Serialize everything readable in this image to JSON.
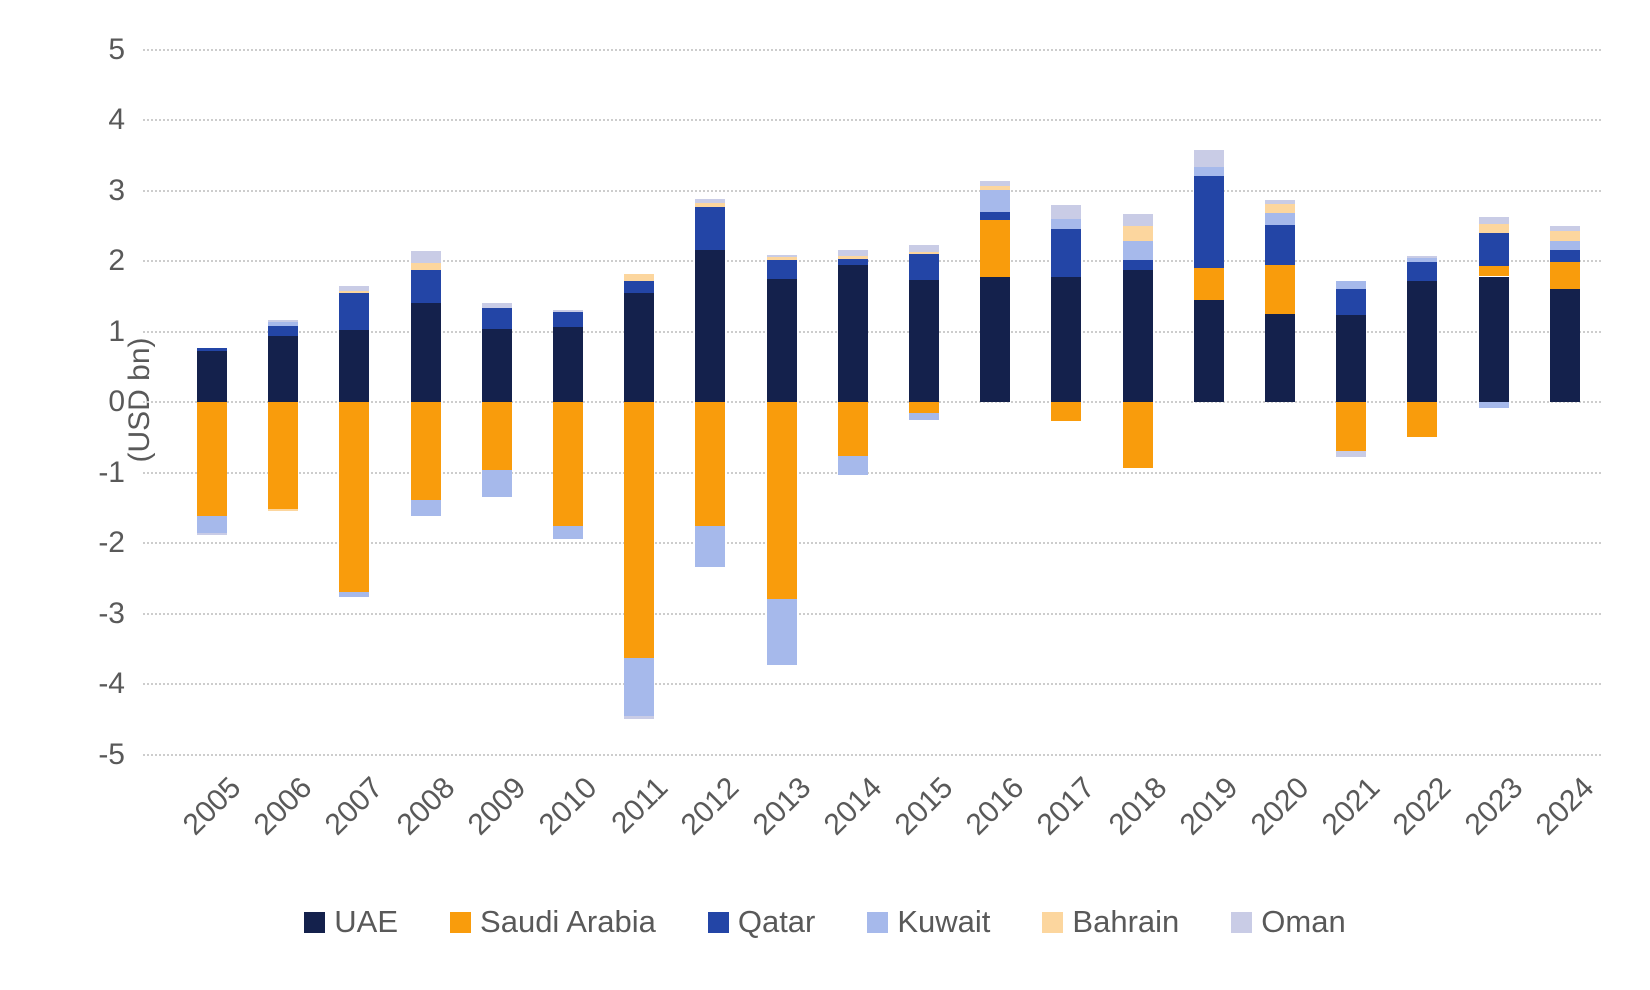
{
  "chart_data": {
    "type": "bar",
    "stacked": true,
    "title": "",
    "xlabel": "",
    "ylabel": "(USD bn)",
    "ylim": [
      -5,
      5
    ],
    "y_ticks": [
      5,
      4,
      3,
      2,
      1,
      0,
      -1,
      -2,
      -3,
      -4,
      -5
    ],
    "grid": "horizontal-dotted",
    "legend_position": "bottom",
    "categories": [
      "2005",
      "2006",
      "2007",
      "2008",
      "2009",
      "2010",
      "2011",
      "2012",
      "2013",
      "2014",
      "2015",
      "2016",
      "2017",
      "2018",
      "2019",
      "2020",
      "2021",
      "2022",
      "2023",
      "2024"
    ],
    "series": [
      {
        "name": "UAE",
        "color": "#14214C",
        "values": [
          0.72,
          0.93,
          1.02,
          1.4,
          1.03,
          1.07,
          1.55,
          2.16,
          1.75,
          1.94,
          1.73,
          1.78,
          1.78,
          1.87,
          1.44,
          1.25,
          1.24,
          1.72,
          1.78,
          1.6
        ]
      },
      {
        "name": "Saudi Arabia",
        "color": "#F99C0C",
        "values": [
          -1.62,
          -1.52,
          -2.69,
          -1.39,
          -0.96,
          -1.76,
          -3.63,
          -1.76,
          -2.8,
          -0.77,
          -0.15,
          0.8,
          -0.27,
          -0.93,
          0.46,
          0.69,
          -0.69,
          -0.5,
          0.15,
          0.39
        ]
      },
      {
        "name": "Qatar",
        "color": "#2345A6",
        "values": [
          0.05,
          0.15,
          0.53,
          0.47,
          0.31,
          0.21,
          0.17,
          0.6,
          0.27,
          0.09,
          0.37,
          0.12,
          0.68,
          0.14,
          1.3,
          0.57,
          0.36,
          0.27,
          0.47,
          0.16
        ]
      },
      {
        "name": "Kuwait",
        "color": "#A6B9EB",
        "values": [
          -0.24,
          0.05,
          -0.07,
          -0.23,
          -0.39,
          -0.18,
          -0.82,
          -0.58,
          -0.93,
          -0.27,
          -0.1,
          0.31,
          0.13,
          0.28,
          0.13,
          0.17,
          0.12,
          0.05,
          -0.08,
          0.13
        ]
      },
      {
        "name": "Bahrain",
        "color": "#FCD69E",
        "values": [
          0.0,
          -0.03,
          0.03,
          0.1,
          0.0,
          0.0,
          0.09,
          0.06,
          0.03,
          0.04,
          0.03,
          0.06,
          0.0,
          0.2,
          0.0,
          0.13,
          0.0,
          0.0,
          0.13,
          0.15
        ]
      },
      {
        "name": "Oman",
        "color": "#C9CCE6",
        "values": [
          -0.03,
          0.04,
          0.07,
          0.17,
          0.07,
          0.03,
          -0.05,
          0.06,
          0.04,
          0.08,
          0.1,
          0.06,
          0.2,
          0.18,
          0.25,
          0.06,
          -0.09,
          0.03,
          0.09,
          0.06
        ]
      }
    ]
  }
}
